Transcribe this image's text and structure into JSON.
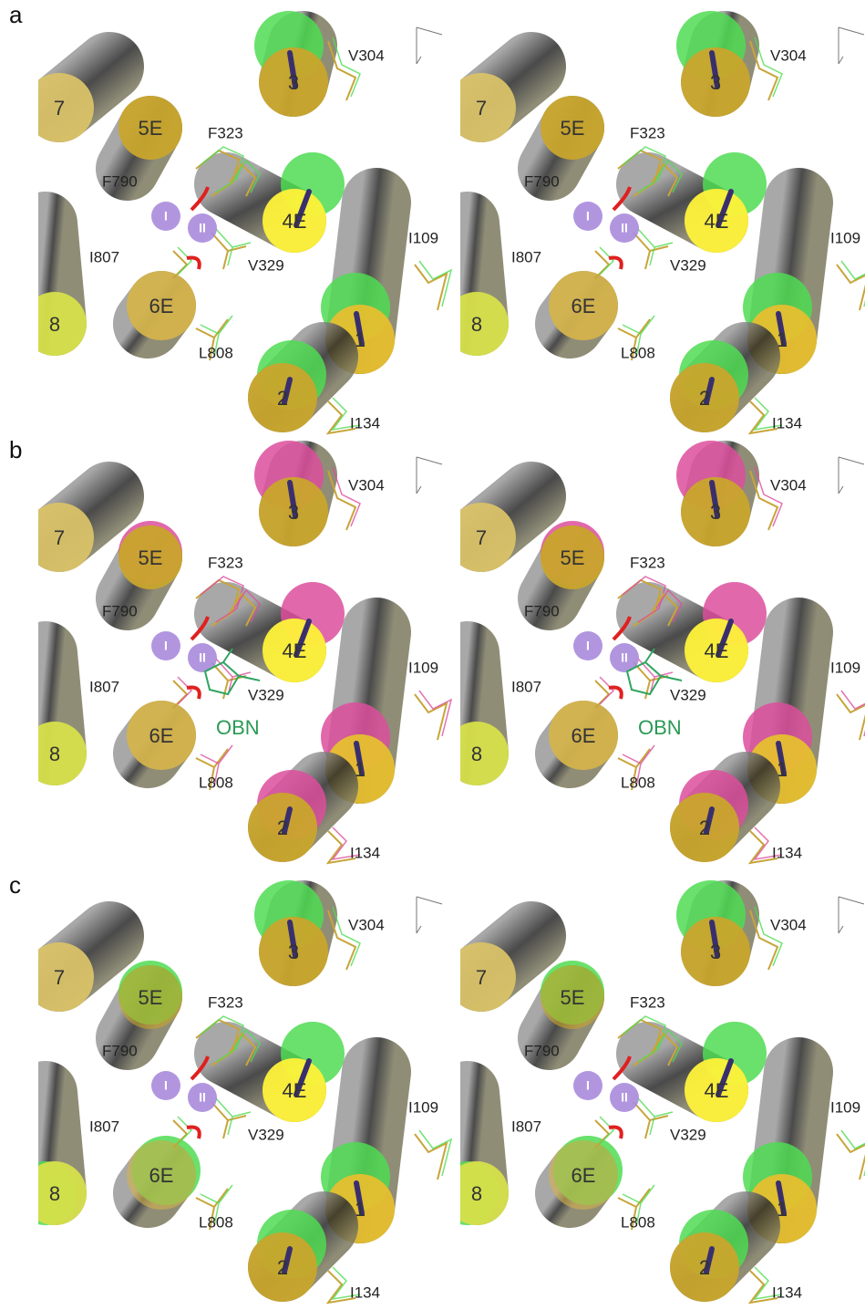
{
  "panels": [
    {
      "letter": "a",
      "state_color": "#4fdc52",
      "helices": [
        "7",
        "5E",
        "3",
        "4E",
        "6E",
        "8",
        "1",
        "2"
      ],
      "residues": [
        "V304",
        "F323",
        "F790",
        "I807",
        "V329",
        "I109",
        "L808",
        "I134"
      ],
      "sites": [
        "I",
        "II"
      ]
    },
    {
      "letter": "b",
      "state_color": "#dc4f9c",
      "helices": [
        "7",
        "5E",
        "3",
        "4E",
        "6E",
        "8",
        "1",
        "2"
      ],
      "residues": [
        "V304",
        "F323",
        "F790",
        "I807",
        "V329",
        "I109",
        "L808",
        "I134"
      ],
      "sites": [
        "I",
        "II"
      ],
      "ligand": "OBN"
    },
    {
      "letter": "c",
      "state_color": "#4fdc52",
      "helices": [
        "7",
        "5E",
        "3",
        "4E",
        "6E",
        "8",
        "1",
        "2"
      ],
      "residues": [
        "V304",
        "F323",
        "F790",
        "I807",
        "V329",
        "I109",
        "L808",
        "I134"
      ],
      "sites": [
        "I",
        "II"
      ]
    }
  ]
}
